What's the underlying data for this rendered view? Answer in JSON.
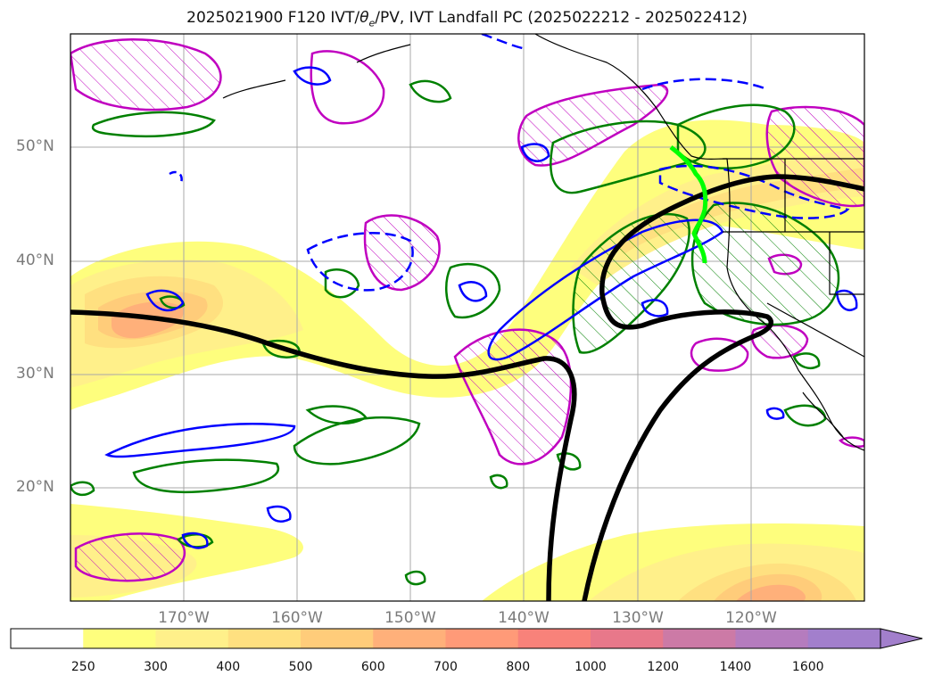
{
  "title": "2025021900 F120 IVT/θe/PV, IVT Landfall PC (2025022212 - 2025022412)",
  "title_parts": {
    "prefix": "2025021900 F120 IVT/",
    "theta": "θ",
    "theta_sub": "e",
    "suffix": "/PV, IVT Landfall PC (2025022212 - 2025022412)"
  },
  "map": {
    "lon_range": [
      -180,
      -110
    ],
    "lat_range": [
      10,
      60
    ],
    "lat_labels": [
      "50°N",
      "40°N",
      "30°N",
      "20°N"
    ],
    "lon_labels": [
      "170°W",
      "160°W",
      "150°W",
      "140°W",
      "130°W",
      "120°W"
    ],
    "grid": true
  },
  "colorbar": {
    "ticks": [
      "250",
      "300",
      "400",
      "500",
      "600",
      "700",
      "800",
      "1000",
      "1200",
      "1400",
      "1600"
    ],
    "colors": [
      "#ffffff",
      "#fefe7d",
      "#fff08a",
      "#ffe080",
      "#ffcc7a",
      "#ffb07a",
      "#ff9a78",
      "#f8827a",
      "#e8788a",
      "#cc7aa6",
      "#b57cbe",
      "#a27fcc"
    ],
    "extend": "max"
  },
  "colors": {
    "ivt_pc": "#000000",
    "pv_contour": "#0000ff",
    "theta_contour": "#008000",
    "landfall_line": "#00ff00",
    "hatch": "#c000c0"
  }
}
